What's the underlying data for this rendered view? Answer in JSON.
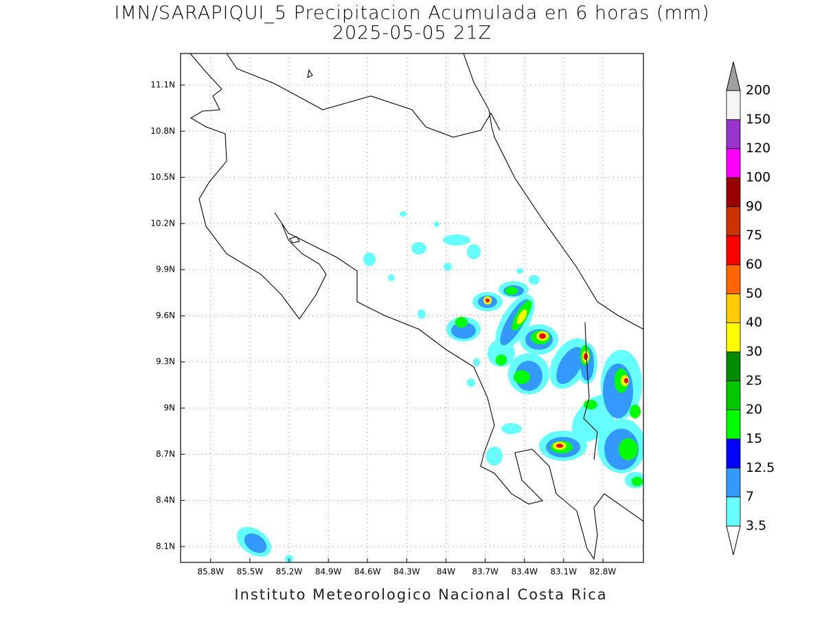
{
  "map": {
    "title": "IMN/SARAPIQUI_5 Precipitacion Acumulada en 6 horas (mm)",
    "subtitle": "2025-05-05 21Z",
    "lon_range": [
      -86.03,
      -82.49
    ],
    "lat_range": [
      7.997,
      11.305
    ],
    "lon_ticks": [
      {
        "value": -85.8,
        "label": "85.8W"
      },
      {
        "value": -85.5,
        "label": "85.5W"
      },
      {
        "value": -85.2,
        "label": "85.2W"
      },
      {
        "value": -84.9,
        "label": "84.9W"
      },
      {
        "value": -84.6,
        "label": "84.6W"
      },
      {
        "value": -84.3,
        "label": "84.3W"
      },
      {
        "value": -84.0,
        "label": "84W"
      },
      {
        "value": -83.7,
        "label": "83.7W"
      },
      {
        "value": -83.4,
        "label": "83.4W"
      },
      {
        "value": -83.1,
        "label": "83.1W"
      },
      {
        "value": -82.8,
        "label": "82.8W"
      }
    ],
    "lat_ticks": [
      {
        "value": 8.1,
        "label": "8.1N"
      },
      {
        "value": 8.4,
        "label": "8.4N"
      },
      {
        "value": 8.7,
        "label": "8.7N"
      },
      {
        "value": 9.0,
        "label": "9N"
      },
      {
        "value": 9.3,
        "label": "9.3N"
      },
      {
        "value": 9.6,
        "label": "9.6N"
      },
      {
        "value": 9.9,
        "label": "9.9N"
      },
      {
        "value": 10.2,
        "label": "10.2N"
      },
      {
        "value": 10.5,
        "label": "10.5N"
      },
      {
        "value": 10.8,
        "label": "10.8N"
      },
      {
        "value": 11.1,
        "label": "11.1N"
      }
    ],
    "colorbar": {
      "levels": [
        3.5,
        7,
        12.5,
        15,
        20,
        25,
        30,
        40,
        50,
        60,
        75,
        90,
        100,
        120,
        150,
        200
      ],
      "colors": [
        "#ffffff",
        "#66ffff",
        "#3399ff",
        "#0000ff",
        "#00ff00",
        "#00c800",
        "#008c00",
        "#ffff00",
        "#ffcc00",
        "#ff6600",
        "#ff0000",
        "#cc3300",
        "#990000",
        "#ff00ff",
        "#9933cc",
        "#f5f5f5",
        "#a0a0a0"
      ]
    },
    "footer": "Instituto Meteorologico Nacional Costa Rica"
  }
}
